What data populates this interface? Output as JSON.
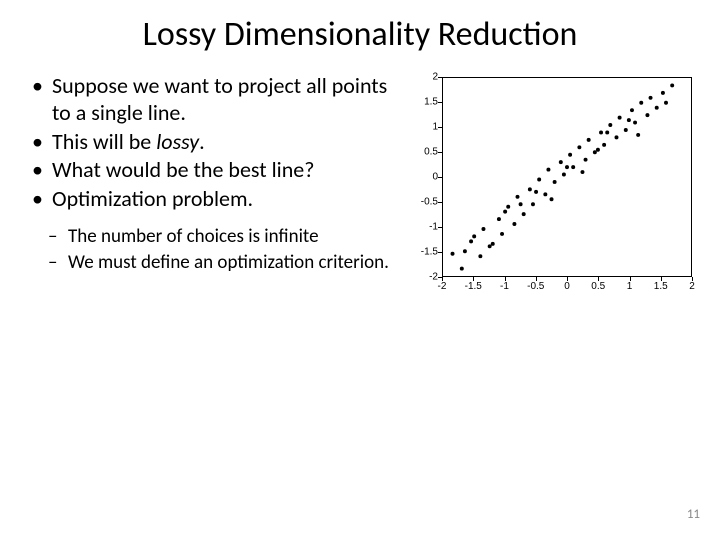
{
  "title": "Lossy Dimensionality Reduction",
  "bullets": {
    "b1": "Suppose we want to project all points to a single line.",
    "b2_pre": "This will be ",
    "b2_em": "lossy",
    "b2_post": ".",
    "b3": "What would be the best line?",
    "b4": "Optimization problem."
  },
  "sub": {
    "s1": "The number of choices is infinite",
    "s2": "We must define an optimization criterion."
  },
  "page_number": "11",
  "chart": {
    "type": "scatter",
    "xlim": [
      -2,
      2
    ],
    "ylim": [
      -2,
      2
    ],
    "xticks": [
      -2,
      -1.5,
      -1,
      -0.5,
      0,
      0.5,
      1,
      1.5,
      2
    ],
    "yticks": [
      -2,
      -1.5,
      -1,
      -0.5,
      0,
      0.5,
      1,
      1.5,
      2
    ],
    "xtick_labels": [
      "-2",
      "-1.5",
      "-1",
      "-0.5",
      "0",
      "0.5",
      "1",
      "1.5",
      "2"
    ],
    "ytick_labels": [
      "-2",
      "-1.5",
      "-1",
      "-0.5",
      "0",
      "0.5",
      "1",
      "1.5",
      "2"
    ],
    "background_color": "#ffffff",
    "border_color": "#000000",
    "marker_color": "#000000",
    "marker_size": 2,
    "data": [
      [
        -1.85,
        -1.55
      ],
      [
        -1.7,
        -1.85
      ],
      [
        -1.65,
        -1.5
      ],
      [
        -1.55,
        -1.3
      ],
      [
        -1.4,
        -1.6
      ],
      [
        -1.35,
        -1.05
      ],
      [
        -1.2,
        -1.35
      ],
      [
        -1.1,
        -0.85
      ],
      [
        -1.05,
        -1.15
      ],
      [
        -0.95,
        -0.6
      ],
      [
        -0.85,
        -0.95
      ],
      [
        -0.8,
        -0.4
      ],
      [
        -0.7,
        -0.75
      ],
      [
        -0.6,
        -0.25
      ],
      [
        -0.55,
        -0.55
      ],
      [
        -0.45,
        -0.05
      ],
      [
        -0.35,
        -0.35
      ],
      [
        -0.3,
        0.15
      ],
      [
        -0.2,
        -0.1
      ],
      [
        -0.1,
        0.3
      ],
      [
        -0.05,
        0.05
      ],
      [
        0.05,
        0.45
      ],
      [
        0.1,
        0.2
      ],
      [
        0.2,
        0.6
      ],
      [
        0.3,
        0.35
      ],
      [
        0.35,
        0.75
      ],
      [
        0.45,
        0.5
      ],
      [
        0.55,
        0.9
      ],
      [
        0.6,
        0.65
      ],
      [
        0.7,
        1.05
      ],
      [
        0.8,
        0.8
      ],
      [
        0.85,
        1.2
      ],
      [
        0.95,
        0.95
      ],
      [
        1.05,
        1.35
      ],
      [
        1.1,
        1.1
      ],
      [
        1.2,
        1.5
      ],
      [
        1.3,
        1.25
      ],
      [
        1.35,
        1.6
      ],
      [
        1.45,
        1.4
      ],
      [
        1.55,
        1.7
      ],
      [
        1.6,
        1.5
      ],
      [
        1.7,
        1.85
      ],
      [
        -1.5,
        -1.2
      ],
      [
        -1.0,
        -0.7
      ],
      [
        -0.5,
        -0.3
      ],
      [
        0.0,
        0.2
      ],
      [
        0.5,
        0.55
      ],
      [
        1.0,
        1.15
      ],
      [
        1.15,
        0.85
      ],
      [
        0.65,
        0.9
      ],
      [
        0.25,
        0.1
      ],
      [
        -0.25,
        -0.45
      ],
      [
        -0.75,
        -0.55
      ],
      [
        -1.25,
        -1.4
      ]
    ]
  }
}
